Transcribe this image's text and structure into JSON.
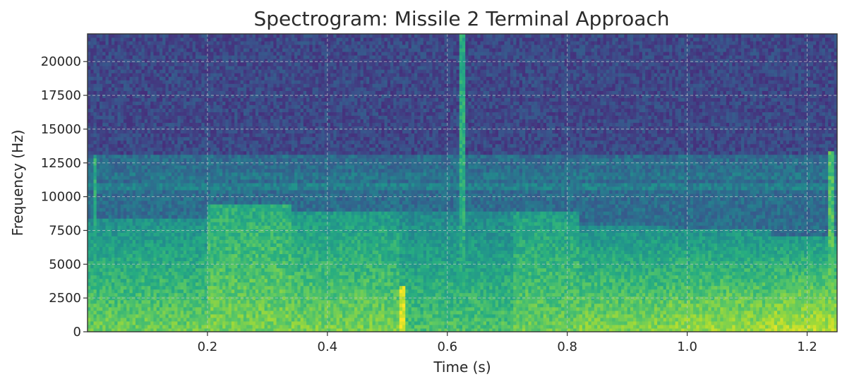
{
  "chart_data": {
    "type": "heatmap",
    "title": "Spectrogram: Missile 2 Terminal Approach",
    "xlabel": "Time (s)",
    "ylabel": "Frequency (Hz)",
    "xlim": [
      0.0,
      1.25
    ],
    "ylim": [
      0,
      22050
    ],
    "x_ticks": [
      0.2,
      0.4,
      0.6,
      0.8,
      1.0,
      1.2
    ],
    "x_tick_labels": [
      "0.2",
      "0.4",
      "0.6",
      "0.8",
      "1.0",
      "1.2"
    ],
    "y_ticks": [
      0,
      2500,
      5000,
      7500,
      10000,
      12500,
      15000,
      17500,
      20000
    ],
    "y_tick_labels": [
      "0",
      "2500",
      "5000",
      "7500",
      "10000",
      "12500",
      "15000",
      "17500",
      "20000"
    ],
    "grid": true,
    "colormap": "viridis",
    "intensity_scale": "relative",
    "time_segments": [
      {
        "t_start": 0.0,
        "t_end": 0.2,
        "low_band_top_hz": 8500,
        "mid_level": 0.5,
        "low_level": 0.78
      },
      {
        "t_start": 0.2,
        "t_end": 0.34,
        "low_band_top_hz": 9500,
        "mid_level": 0.62,
        "low_level": 0.8
      },
      {
        "t_start": 0.34,
        "t_end": 0.52,
        "low_band_top_hz": 8800,
        "mid_level": 0.55,
        "low_level": 0.8
      },
      {
        "t_start": 0.52,
        "t_end": 0.71,
        "low_band_top_hz": 8800,
        "mid_level": 0.48,
        "low_level": 0.72
      },
      {
        "t_start": 0.71,
        "t_end": 0.82,
        "low_band_top_hz": 9000,
        "mid_level": 0.56,
        "low_level": 0.78
      },
      {
        "t_start": 0.82,
        "t_end": 0.97,
        "low_band_top_hz": 8000,
        "mid_level": 0.5,
        "low_level": 0.82
      },
      {
        "t_start": 0.97,
        "t_end": 1.14,
        "low_band_top_hz": 7500,
        "mid_level": 0.52,
        "low_level": 0.86
      },
      {
        "t_start": 1.14,
        "t_end": 1.25,
        "low_band_top_hz": 7000,
        "mid_level": 0.55,
        "low_level": 0.9
      }
    ],
    "noise_floor_level": 0.22,
    "upper_band": {
      "top_hz": 13000,
      "level": 0.36
    },
    "tonal_lines": [
      {
        "freq_hz": 10800,
        "level": 0.44
      },
      {
        "freq_hz": 11600,
        "level": 0.4
      }
    ],
    "transients": [
      {
        "t": 0.012,
        "f_top_hz": 13200,
        "level": 0.62
      },
      {
        "t": 0.525,
        "f_top_hz": 3500,
        "level": 0.95
      },
      {
        "t": 0.626,
        "f_top_hz": 22050,
        "level": 0.62
      },
      {
        "t": 1.242,
        "f_top_hz": 13500,
        "level": 0.72
      }
    ]
  }
}
